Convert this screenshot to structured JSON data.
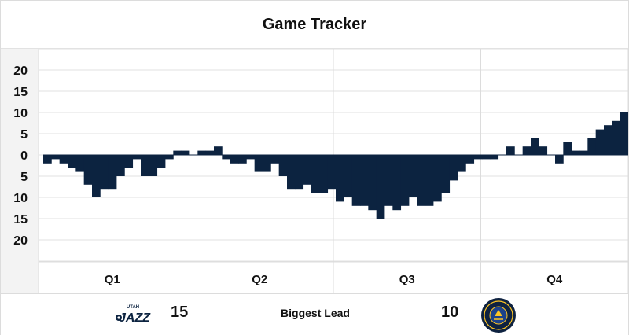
{
  "title": "Game Tracker",
  "colors": {
    "team_color": "#0c2340",
    "grid": "#dedede",
    "axis_bg": "#f3f3f3",
    "nuggets_gold": "#fec524",
    "nuggets_navy": "#0e2240"
  },
  "chart_data": {
    "type": "bar",
    "title": "Game Tracker",
    "xlabel": "",
    "ylabel": "",
    "x_quarters": [
      "Q1",
      "Q2",
      "Q3",
      "Q4"
    ],
    "ytick_labels": [
      "20",
      "15",
      "10",
      "5",
      "0",
      "5",
      "10",
      "15",
      "20"
    ],
    "ylim": [
      -25,
      25
    ],
    "grid": true,
    "lead_by_minute": [
      -2,
      -1,
      -2,
      -3,
      -4,
      -7,
      -10,
      -8,
      -8,
      -5,
      -3,
      -1,
      -5,
      -5,
      -3,
      -1,
      1,
      1,
      0,
      1,
      1,
      2,
      -1,
      -2,
      -2,
      -1,
      -4,
      -4,
      -2,
      -5,
      -8,
      -8,
      -7,
      -9,
      -9,
      -8,
      -11,
      -10,
      -12,
      -12,
      -13,
      -15,
      -12,
      -13,
      -12,
      -10,
      -12,
      -12,
      -11,
      -9,
      -6,
      -4,
      -2,
      -1,
      -1,
      -1,
      0,
      2,
      0,
      2,
      4,
      2,
      0,
      -2,
      3,
      1,
      1,
      4,
      6,
      7,
      8,
      10
    ]
  },
  "footer": {
    "home_team": "Utah Jazz",
    "jazz_logo_text": "UTAH JAZZ",
    "home_biggest_lead": "15",
    "label": "Biggest Lead",
    "away_biggest_lead": "10",
    "away_team": "Denver Nuggets",
    "nuggets_logo_text": "DENVER NUGGETS"
  }
}
